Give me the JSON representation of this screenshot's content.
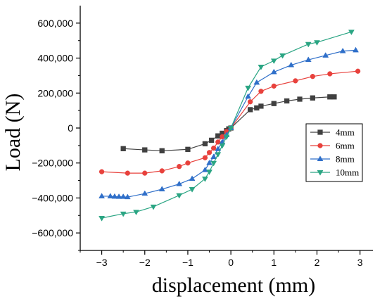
{
  "chart_data": {
    "type": "line",
    "title": "",
    "xlabel": "displacement (mm)",
    "ylabel": "Load (N)",
    "xlim": [
      -3.5,
      3.3
    ],
    "ylim": [
      -700000,
      700000
    ],
    "xticks": [
      -3,
      -2,
      -1,
      0,
      1,
      2,
      3
    ],
    "xtick_labels": [
      "−3",
      "−2",
      "−1",
      "0",
      "1",
      "2",
      "3"
    ],
    "yticks": [
      -600000,
      -400000,
      -200000,
      0,
      200000,
      400000,
      600000
    ],
    "ytick_labels": [
      "−600,000",
      "−400,000",
      "−200,000",
      "0",
      "200,000",
      "400,000",
      "600,000"
    ],
    "grid": false,
    "legend_position": "center-right",
    "series": [
      {
        "name": "4mm",
        "color": "#404040",
        "marker": "square",
        "x": [
          -2.5,
          -2.0,
          -1.6,
          -1.0,
          -0.6,
          -0.45,
          -0.3,
          -0.2,
          -0.1,
          -0.05,
          0.0,
          0.45,
          0.6,
          0.7,
          1.0,
          1.3,
          1.6,
          1.9,
          2.3,
          2.4
        ],
        "y": [
          -118000,
          -125000,
          -130000,
          -122000,
          -90000,
          -70000,
          -45000,
          -30000,
          -15000,
          -5000,
          0,
          105000,
          115000,
          125000,
          140000,
          155000,
          165000,
          172000,
          178000,
          178000
        ]
      },
      {
        "name": "6mm",
        "color": "#e8413c",
        "marker": "circle",
        "x": [
          -3.0,
          -2.4,
          -2.0,
          -1.6,
          -1.2,
          -1.0,
          -0.6,
          -0.5,
          -0.4,
          -0.3,
          -0.2,
          -0.1,
          0.0,
          0.45,
          0.7,
          1.0,
          1.5,
          1.9,
          2.3,
          2.95
        ],
        "y": [
          -250000,
          -258000,
          -258000,
          -245000,
          -220000,
          -200000,
          -170000,
          -140000,
          -115000,
          -80000,
          -50000,
          -20000,
          0,
          150000,
          210000,
          240000,
          270000,
          295000,
          310000,
          325000
        ]
      },
      {
        "name": "8mm",
        "color": "#2f6fc9",
        "marker": "triangle-up",
        "x": [
          -3.0,
          -2.8,
          -2.7,
          -2.6,
          -2.5,
          -2.4,
          -2.0,
          -1.6,
          -1.2,
          -0.9,
          -0.6,
          -0.5,
          -0.4,
          -0.3,
          -0.2,
          -0.1,
          0.0,
          0.4,
          0.6,
          1.0,
          1.4,
          1.8,
          2.2,
          2.6,
          2.9
        ],
        "y": [
          -390000,
          -390000,
          -392000,
          -393000,
          -393000,
          -395000,
          -375000,
          -350000,
          -320000,
          -290000,
          -240000,
          -200000,
          -165000,
          -120000,
          -80000,
          -40000,
          0,
          180000,
          260000,
          320000,
          360000,
          390000,
          415000,
          440000,
          445000
        ]
      },
      {
        "name": "10mm",
        "color": "#2aa583",
        "marker": "triangle-down",
        "x": [
          -3.0,
          -2.5,
          -2.2,
          -1.8,
          -1.2,
          -0.9,
          -0.6,
          -0.5,
          -0.4,
          -0.3,
          -0.2,
          -0.1,
          0.0,
          0.4,
          0.7,
          1.0,
          1.2,
          1.8,
          2.0,
          2.8
        ],
        "y": [
          -515000,
          -490000,
          -480000,
          -450000,
          -385000,
          -350000,
          -290000,
          -250000,
          -200000,
          -150000,
          -100000,
          -50000,
          0,
          230000,
          350000,
          385000,
          415000,
          480000,
          490000,
          550000
        ]
      }
    ]
  }
}
